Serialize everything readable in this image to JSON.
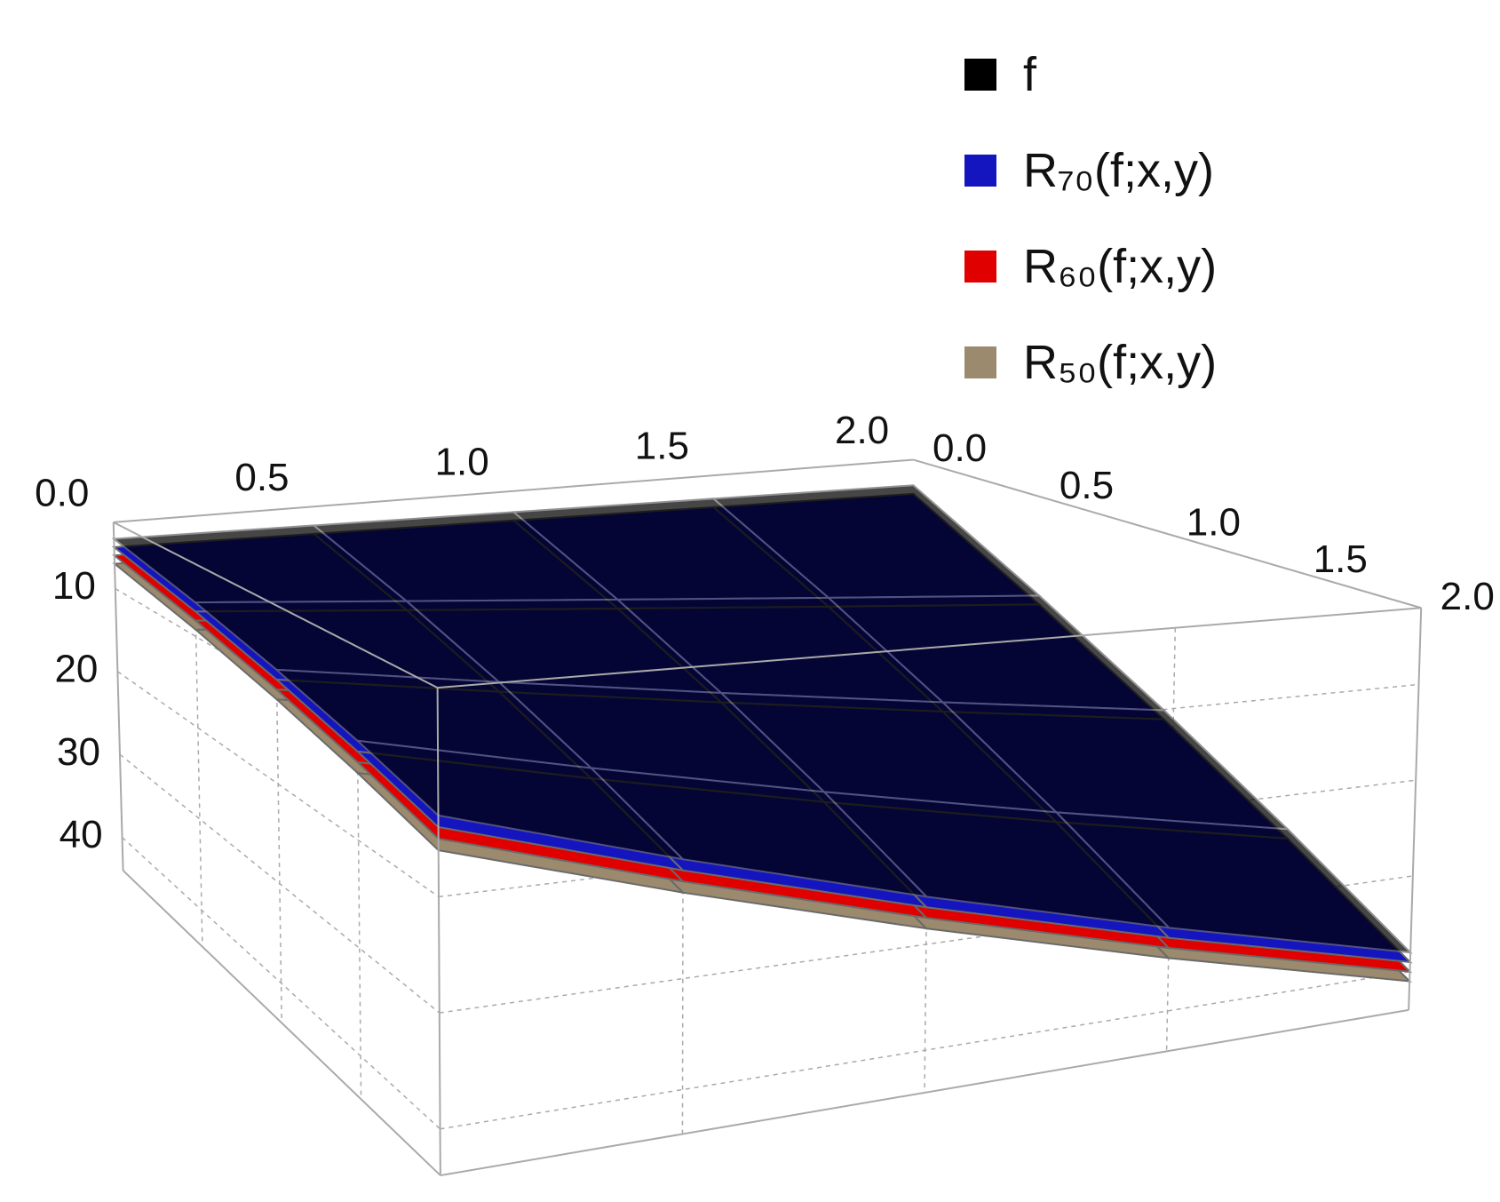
{
  "chart_data": {
    "type": "surface",
    "x": [
      0,
      0.5,
      1,
      1.5,
      2
    ],
    "y": [
      0,
      0.5,
      1,
      1.5,
      2
    ],
    "xlim": [
      0,
      2
    ],
    "ylim": [
      0,
      2
    ],
    "zlim": [
      2,
      44
    ],
    "xticks": [
      {
        "value": 0,
        "label": "0.0"
      },
      0.5,
      {
        "value": 1,
        "label": "1.0"
      },
      1.5,
      {
        "value": 2,
        "label": "2.0"
      }
    ],
    "yticks": [
      {
        "value": 0,
        "label": "0.0"
      },
      0.5,
      {
        "value": 1,
        "label": "1.0"
      },
      1.5,
      {
        "value": 2,
        "label": "2.0"
      }
    ],
    "zticks": [
      10,
      20,
      30,
      40
    ],
    "grid": true,
    "series": [
      {
        "name": "R₅₀(f;x,y)",
        "color": "#9c8a6e",
        "values": [
          [
            7,
            9.25,
            11.5,
            13.75,
            16
          ],
          [
            7.25,
            11,
            14.75,
            18.5,
            22.25
          ],
          [
            7.5,
            12.75,
            18,
            23.25,
            28.5
          ],
          [
            7.75,
            14.5,
            21.25,
            28,
            34.75
          ],
          [
            8,
            16.25,
            24.5,
            32.75,
            41
          ]
        ]
      },
      {
        "name": "R₆₀(f;x,y)",
        "color": "#e00000",
        "values": [
          [
            6,
            8.25,
            10.5,
            12.75,
            15
          ],
          [
            6.25,
            10,
            13.75,
            17.5,
            21.25
          ],
          [
            6.5,
            11.75,
            17,
            22.25,
            27.5
          ],
          [
            6.75,
            13.5,
            20.25,
            27,
            33.75
          ],
          [
            7,
            15.25,
            23.5,
            31.75,
            40
          ]
        ]
      },
      {
        "name": "R₇₀(f;x,y)",
        "color": "#1515c0",
        "values": [
          [
            5,
            7.25,
            9.5,
            11.75,
            14
          ],
          [
            5.25,
            9,
            12.75,
            16.5,
            20.25
          ],
          [
            5.5,
            10.75,
            16,
            21.25,
            26.5
          ],
          [
            5.75,
            12.5,
            19.25,
            26,
            32.75
          ],
          [
            6,
            14.25,
            22.5,
            30.75,
            39
          ]
        ]
      },
      {
        "name": "f",
        "color": "#000000",
        "values": [
          [
            4,
            6.25,
            8.5,
            10.75,
            13
          ],
          [
            4.25,
            8,
            11.75,
            15.5,
            19.25
          ],
          [
            4.5,
            9.75,
            15,
            20.25,
            25.5
          ],
          [
            4.75,
            11.5,
            18.25,
            25,
            31.75
          ],
          [
            5,
            13.25,
            21.5,
            29.75,
            38
          ]
        ]
      }
    ]
  }
}
